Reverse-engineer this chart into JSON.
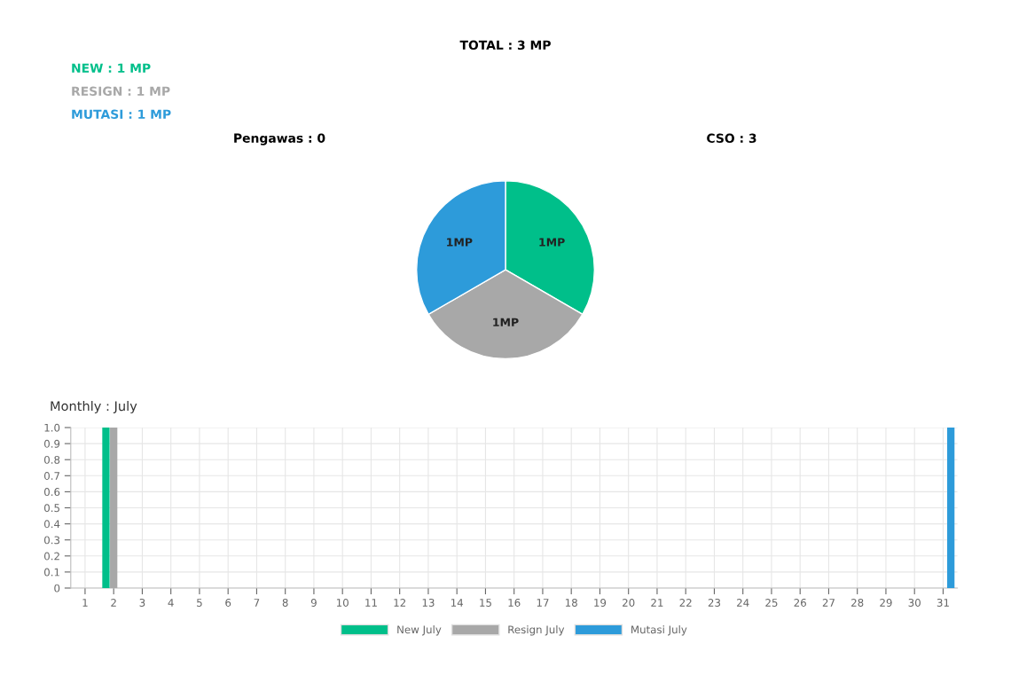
{
  "chart_data": [
    {
      "type": "pie",
      "title": "TOTAL : 3 MP",
      "categories": [
        null,
        null,
        null
      ],
      "values": [
        1,
        1,
        1
      ],
      "colors": [
        "#00bf8a",
        "#a8a8a8",
        "#2d9bda"
      ],
      "value_labels": [
        "1MP",
        "1MP",
        "1MP"
      ],
      "annotations": [
        "NEW : 1 MP",
        "RESIGN : 1 MP",
        "MUTASI : 1 MP",
        "Pengawas : 0",
        "CSO : 3"
      ]
    },
    {
      "type": "bar",
      "title": "Monthly : July",
      "categories": [
        "1",
        "2",
        "3",
        "4",
        "5",
        "6",
        "7",
        "8",
        "9",
        "10",
        "11",
        "12",
        "13",
        "14",
        "15",
        "16",
        "17",
        "18",
        "19",
        "20",
        "21",
        "22",
        "23",
        "24",
        "25",
        "26",
        "27",
        "28",
        "29",
        "30",
        "31"
      ],
      "series": [
        {
          "name": "New July",
          "color": "#00bf8a",
          "values": [
            0,
            1,
            0,
            0,
            0,
            0,
            0,
            0,
            0,
            0,
            0,
            0,
            0,
            0,
            0,
            0,
            0,
            0,
            0,
            0,
            0,
            0,
            0,
            0,
            0,
            0,
            0,
            0,
            0,
            0,
            0
          ]
        },
        {
          "name": "Resign July",
          "color": "#a8a8a8",
          "values": [
            0,
            1,
            0,
            0,
            0,
            0,
            0,
            0,
            0,
            0,
            0,
            0,
            0,
            0,
            0,
            0,
            0,
            0,
            0,
            0,
            0,
            0,
            0,
            0,
            0,
            0,
            0,
            0,
            0,
            0,
            0
          ]
        },
        {
          "name": "Mutasi July",
          "color": "#2d9bda",
          "values": [
            0,
            0,
            0,
            0,
            0,
            0,
            0,
            0,
            0,
            0,
            0,
            0,
            0,
            0,
            0,
            0,
            0,
            0,
            0,
            0,
            0,
            0,
            0,
            0,
            0,
            0,
            0,
            0,
            0,
            0,
            1
          ]
        }
      ],
      "ylim": [
        0,
        1
      ],
      "yticks": [
        0,
        0.1,
        0.2,
        0.3,
        0.4,
        0.5,
        0.6,
        0.7,
        0.8,
        0.9,
        {
          "value": 1,
          "label": "1.0"
        }
      ],
      "grid": true,
      "legend": "bottom"
    }
  ]
}
